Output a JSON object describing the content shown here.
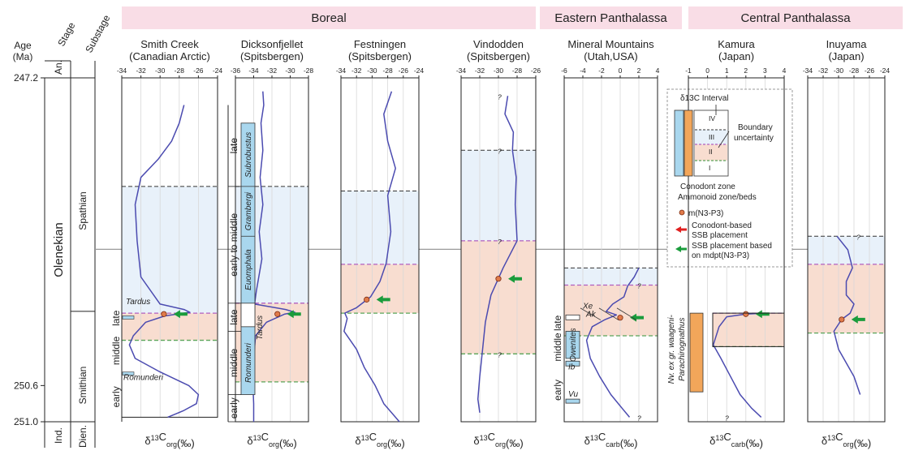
{
  "chart_data": {
    "type": "line",
    "age": {
      "label_line1": "Age",
      "label_line2": "(Ma)",
      "ticks": [
        {
          "value": 247.2,
          "label": "247.2"
        },
        {
          "value": 250.6,
          "label": "250.6"
        },
        {
          "value": 251.0,
          "label": "251.0"
        }
      ],
      "range": [
        247.2,
        251.0
      ]
    },
    "left_columns": {
      "stage_header": "Stage",
      "an_label": "An.",
      "substage_header": "Substage",
      "olenekian_label": "Olenekian",
      "spathian_label": "Spathian",
      "smithian_label": "Smithian",
      "ind_label": "Ind.",
      "dien_label": "Dien."
    },
    "regions": [
      {
        "name": "Boreal",
        "panels": [
          0,
          3
        ]
      },
      {
        "name": "Eastern Panthalassa",
        "panels": [
          4,
          4
        ]
      },
      {
        "name": "Central Panthalassa",
        "panels": [
          5,
          6
        ]
      }
    ],
    "legend": {
      "interval_title": "δ13C Interval",
      "intervals": [
        "IV",
        "III",
        "II",
        "I"
      ],
      "boundary_label_1": "Boundary",
      "boundary_label_2": "uncertainty",
      "conodont_zone_label": "Conodont zone",
      "ammonoid_zone_label": "Ammonoid zone/beds",
      "mdpt_label": "m(N3-P3)",
      "red_arrow_label_1": "Conodont-based",
      "red_arrow_label_2": "SSB placement",
      "green_arrow_label_1": "SSB placement based",
      "green_arrow_label_2": "on mdpt(N3-P3)"
    },
    "colors": {
      "curve": "#4b4bb0",
      "red_fill": "#f8ddd0",
      "blue_fill": "#e8f1fa",
      "zone_blue": "#a9d7ee",
      "zone_orange": "#f2a65a",
      "purple_dash": "#b060c0",
      "green_dash": "#5aa55a",
      "black_dash": "#333333",
      "arrow_green": "#1a9c3c",
      "arrow_red": "#e02020",
      "region_band": "#f9dde6",
      "dot": "#e07a4a"
    },
    "panels": [
      {
        "title_line1": "Smith Creek",
        "title_line2": "(Canadian Arctic)",
        "xlabel": "δ13Corg(‰)",
        "xlabel_main": "δ",
        "xlabel_sup": "13",
        "xlabel_c": "C",
        "xlabel_sub": "org",
        "xlabel_unit": "(‰)",
        "xlim": [
          -34,
          -24
        ],
        "xticks": [
          -34,
          -32,
          -30,
          -28,
          -26,
          -24
        ],
        "xtick_labels": [
          "-34",
          "-32",
          "-30",
          "-28",
          "-26",
          "-24"
        ],
        "age_top": 247.2,
        "age_bottom": 250.95,
        "boundaries": {
          "black": 248.4,
          "purple": 249.8,
          "green": 250.1
        },
        "mdpt": {
          "age": 249.81,
          "value": -29.6
        },
        "curve": [
          {
            "age": 247.5,
            "value": -27.5
          },
          {
            "age": 247.7,
            "value": -28.0
          },
          {
            "age": 247.9,
            "value": -28.8
          },
          {
            "age": 248.1,
            "value": -30.2
          },
          {
            "age": 248.3,
            "value": -32.0
          },
          {
            "age": 248.6,
            "value": -32.6
          },
          {
            "age": 249.0,
            "value": -32.4
          },
          {
            "age": 249.4,
            "value": -32.0
          },
          {
            "age": 249.7,
            "value": -30.0
          },
          {
            "age": 249.76,
            "value": -27.5
          },
          {
            "age": 249.79,
            "value": -26.9
          },
          {
            "age": 249.83,
            "value": -29.5
          },
          {
            "age": 249.9,
            "value": -31.5
          },
          {
            "age": 250.05,
            "value": -32.8
          },
          {
            "age": 250.15,
            "value": -33.2
          },
          {
            "age": 250.3,
            "value": -32.6
          },
          {
            "age": 250.45,
            "value": -30.0
          },
          {
            "age": 250.6,
            "value": -27.0
          },
          {
            "age": 250.7,
            "value": -26.0
          },
          {
            "age": 250.8,
            "value": -26.2
          },
          {
            "age": 250.88,
            "value": -27.6
          },
          {
            "age": 250.95,
            "value": -29.2
          }
        ],
        "substages": [
          {
            "label": "late",
            "from": 249.78,
            "to": 249.93
          },
          {
            "label": "middle",
            "from": 249.93,
            "to": 250.5
          },
          {
            "label": "early",
            "from": 250.5,
            "to": 250.95
          }
        ],
        "zone_markers": [
          {
            "label": "Tardus",
            "age": 249.8
          },
          {
            "label": "Romunderi",
            "age": 250.55
          }
        ]
      },
      {
        "title_line1": "Dicksonfjellet",
        "title_line2": "(Spitsbergen)",
        "xlabel": "δ13Corg(‰)",
        "xlabel_main": "δ",
        "xlabel_sup": "13",
        "xlabel_c": "C",
        "xlabel_sub": "org",
        "xlabel_unit": "(‰)",
        "xlim": [
          -36,
          -28
        ],
        "xticks": [
          -36,
          -34,
          -32,
          -30,
          -28
        ],
        "xtick_labels": [
          "-36",
          "-34",
          "-32",
          "-30",
          "-28"
        ],
        "age_top": 247.2,
        "age_bottom": 251.0,
        "boundaries": {
          "black": 248.4,
          "purple": 249.69,
          "green": 250.56
        },
        "mdpt": {
          "age": 249.81,
          "value": -31.4
        },
        "curve": [
          {
            "age": 247.35,
            "value": -33.0
          },
          {
            "age": 247.5,
            "value": -32.9
          },
          {
            "age": 247.7,
            "value": -33.2
          },
          {
            "age": 248.0,
            "value": -33.0
          },
          {
            "age": 248.3,
            "value": -33.3
          },
          {
            "age": 248.6,
            "value": -33.0
          },
          {
            "age": 248.9,
            "value": -33.4
          },
          {
            "age": 249.2,
            "value": -33.1
          },
          {
            "age": 249.55,
            "value": -33.7
          },
          {
            "age": 249.7,
            "value": -33.9
          },
          {
            "age": 249.76,
            "value": -30.5
          },
          {
            "age": 249.79,
            "value": -29.5
          },
          {
            "age": 249.81,
            "value": -30.6
          },
          {
            "age": 249.9,
            "value": -32.6
          },
          {
            "age": 250.05,
            "value": -33.8
          },
          {
            "age": 250.3,
            "value": -34.0
          },
          {
            "age": 250.56,
            "value": -34.1
          },
          {
            "age": 250.8,
            "value": -34.0
          },
          {
            "age": 251.0,
            "value": -34.0
          }
        ],
        "substages": [
          {
            "label": "late",
            "from": 247.5,
            "to": 248.4
          },
          {
            "label": "early to middle",
            "from": 248.4,
            "to": 249.69
          },
          {
            "label": "late",
            "from": 249.69,
            "to": 250.0
          },
          {
            "label": "middle",
            "from": 250.0,
            "to": 250.7
          },
          {
            "label": "early",
            "from": 250.7,
            "to": 251.0
          }
        ],
        "zone_markers": [
          {
            "label": "Subrobustus",
            "from": 247.7,
            "to": 248.4
          },
          {
            "label": "Grambergi",
            "from": 248.4,
            "to": 248.95
          },
          {
            "label": "Euomphala",
            "from": 248.95,
            "to": 249.69
          },
          {
            "label": "Tardus",
            "age": 249.95
          },
          {
            "label": "Romunderi",
            "from": 250.0,
            "to": 250.7
          }
        ]
      },
      {
        "title_line1": "Festningen",
        "title_line2": "(Spitsbergen)",
        "xlabel": "δ13Corg(‰)",
        "xlabel_main": "δ",
        "xlabel_sup": "13",
        "xlabel_c": "C",
        "xlabel_sub": "org",
        "xlabel_unit": "(‰)",
        "xlim": [
          -34,
          -24
        ],
        "xticks": [
          -34,
          -32,
          -30,
          -28,
          -26,
          -24
        ],
        "xtick_labels": [
          "-34",
          "-32",
          "-30",
          "-28",
          "-26",
          "-24"
        ],
        "age_top": 247.2,
        "age_bottom": 251.0,
        "boundaries": {
          "black": 248.45,
          "purple": 249.26,
          "green": 249.8
        },
        "mdpt": {
          "age": 249.65,
          "value": -30.7
        },
        "curve": [
          {
            "age": 247.35,
            "value": -27.5
          },
          {
            "age": 247.6,
            "value": -28.5
          },
          {
            "age": 247.9,
            "value": -28.0
          },
          {
            "age": 248.2,
            "value": -27.0
          },
          {
            "age": 248.5,
            "value": -28.0
          },
          {
            "age": 248.9,
            "value": -27.6
          },
          {
            "age": 249.25,
            "value": -28.2
          },
          {
            "age": 249.45,
            "value": -29.0
          },
          {
            "age": 249.62,
            "value": -30.2
          },
          {
            "age": 249.74,
            "value": -32.0
          },
          {
            "age": 249.8,
            "value": -33.5
          },
          {
            "age": 249.86,
            "value": -33.2
          },
          {
            "age": 250.0,
            "value": -33.6
          },
          {
            "age": 250.2,
            "value": -32.0
          },
          {
            "age": 250.4,
            "value": -31.0
          },
          {
            "age": 250.6,
            "value": -29.6
          },
          {
            "age": 250.8,
            "value": -28.5
          },
          {
            "age": 251.0,
            "value": -26.5
          }
        ]
      },
      {
        "title_line1": "Vindodden",
        "title_line2": "(Spitsbergen)",
        "xlabel": "δ13Corg(‰)",
        "xlabel_main": "δ",
        "xlabel_sup": "13",
        "xlabel_c": "C",
        "xlabel_sub": "org",
        "xlabel_unit": "(‰)",
        "xlim": [
          -34,
          -26
        ],
        "xticks": [
          -34,
          -32,
          -30,
          -28,
          -26
        ],
        "xtick_labels": [
          "-34",
          "-32",
          "-30",
          "-28",
          "-26"
        ],
        "age_top": 247.2,
        "age_bottom": 251.0,
        "boundaries": {
          "black": 248.0,
          "purple": 249.0,
          "green": 250.25
        },
        "question_marks": [
          247.4,
          248.0,
          249.0,
          250.25
        ],
        "mdpt": {
          "age": 249.42,
          "value": -30.0
        },
        "curve": [
          {
            "age": 247.4,
            "value": -29.0
          },
          {
            "age": 247.6,
            "value": -29.3
          },
          {
            "age": 247.8,
            "value": -28.4
          },
          {
            "age": 248.0,
            "value": -28.5
          },
          {
            "age": 248.3,
            "value": -28.1
          },
          {
            "age": 248.6,
            "value": -28.2
          },
          {
            "age": 249.0,
            "value": -28.0
          },
          {
            "age": 249.3,
            "value": -29.5
          },
          {
            "age": 249.6,
            "value": -30.8
          },
          {
            "age": 249.9,
            "value": -31.4
          },
          {
            "age": 250.2,
            "value": -31.7
          },
          {
            "age": 250.5,
            "value": -32.0
          },
          {
            "age": 250.75,
            "value": -32.2
          },
          {
            "age": 250.9,
            "value": -32.0
          }
        ]
      },
      {
        "title_line1": "Mineral Mountains",
        "title_line2": "(Utah,USA)",
        "xlabel": "δ13Ccarb(‰)",
        "xlabel_main": "δ",
        "xlabel_sup": "13",
        "xlabel_c": "C",
        "xlabel_sub": "carb",
        "xlabel_unit": "(‰)",
        "xlim": [
          -6,
          4
        ],
        "xticks": [
          -6,
          -4,
          -2,
          0,
          2,
          4
        ],
        "xtick_labels": [
          "-6",
          "-4",
          "-2",
          "0",
          "2",
          "4"
        ],
        "age_top": 247.2,
        "age_bottom": 251.0,
        "boundaries": {
          "black": 249.3,
          "purple": 249.49,
          "green": 250.05
        },
        "question_marks": [
          249.49,
          250.95
        ],
        "mdpt": {
          "age": 249.85,
          "value": 0.0
        },
        "curve": [
          {
            "age": 249.3,
            "value": 2.0
          },
          {
            "age": 249.4,
            "value": 1.5
          },
          {
            "age": 249.5,
            "value": 0.8
          },
          {
            "age": 249.62,
            "value": 0.4
          },
          {
            "age": 249.7,
            "value": -0.8
          },
          {
            "age": 249.78,
            "value": -1.5
          },
          {
            "age": 249.82,
            "value": -0.4
          },
          {
            "age": 249.87,
            "value": -1.6
          },
          {
            "age": 249.95,
            "value": -3.0
          },
          {
            "age": 250.1,
            "value": -3.6
          },
          {
            "age": 250.3,
            "value": -3.2
          },
          {
            "age": 250.5,
            "value": -2.2
          },
          {
            "age": 250.7,
            "value": -1.0
          },
          {
            "age": 250.85,
            "value": 0.2
          },
          {
            "age": 250.95,
            "value": 1.0
          }
        ],
        "substages": [
          {
            "label": "late",
            "from": 249.82,
            "to": 250.0
          },
          {
            "label": "middle",
            "from": 250.0,
            "to": 250.35
          },
          {
            "label": "early",
            "from": 250.35,
            "to": 250.95
          }
        ],
        "zone_markers": [
          {
            "label": "Xe",
            "age": 249.75
          },
          {
            "label": "Ak",
            "age": 249.83
          },
          {
            "label": "Owenites",
            "from": 250.0,
            "to": 250.3
          },
          {
            "label": "Ib",
            "age": 250.36
          },
          {
            "label": "Vu",
            "age": 250.75
          }
        ]
      },
      {
        "title_line1": "Kamura",
        "title_line2": "(Japan)",
        "xlabel": "δ13Ccarb(‰)",
        "xlabel_main": "δ",
        "xlabel_sup": "13",
        "xlabel_c": "C",
        "xlabel_sub": "carb",
        "xlabel_unit": "(‰)",
        "xlim": [
          -1,
          4
        ],
        "xticks": [
          -1,
          0,
          1,
          2,
          3,
          4
        ],
        "xtick_labels": [
          "-1",
          "0",
          "1",
          "2",
          "3",
          "4"
        ],
        "age_top": 247.2,
        "age_bottom": 251.0,
        "boundaries": {
          "black": 250.17,
          "purple": 249.8,
          "green": 250.17
        },
        "question_marks": [
          250.95
        ],
        "mdpt": {
          "age": 249.81,
          "value": 2.0
        },
        "curve": [
          {
            "age": 249.8,
            "value": 3.0
          },
          {
            "age": 249.81,
            "value": 2.0
          },
          {
            "age": 249.84,
            "value": 1.0
          },
          {
            "age": 249.95,
            "value": 0.6
          },
          {
            "age": 250.15,
            "value": 0.3
          },
          {
            "age": 250.3,
            "value": 0.7
          },
          {
            "age": 250.5,
            "value": 1.2
          },
          {
            "age": 250.7,
            "value": 1.7
          },
          {
            "age": 250.85,
            "value": 2.3
          },
          {
            "age": 250.95,
            "value": 2.8
          }
        ],
        "zone_markers": [
          {
            "label": "Nv. ex gr. waageni-",
            "line2": "Parachirognathus"
          }
        ]
      },
      {
        "title_line1": "Inuyama",
        "title_line2": "(Japan)",
        "xlabel": "δ13Corg(‰)",
        "xlabel_main": "δ",
        "xlabel_sup": "13",
        "xlabel_c": "C",
        "xlabel_sub": "org",
        "xlabel_unit": "(‰)",
        "xlim": [
          -34,
          -24
        ],
        "xticks": [
          -34,
          -32,
          -30,
          -28,
          -26,
          -24
        ],
        "xtick_labels": [
          "-34",
          "-32",
          "-30",
          "-28",
          "-26",
          "-24"
        ],
        "age_top": 247.2,
        "age_bottom": 251.0,
        "boundaries": {
          "black": 248.95,
          "purple": 249.26,
          "green": 250.02
        },
        "question_marks": [
          248.95
        ],
        "mdpt": {
          "age": 249.87,
          "value": -29.6
        },
        "curve": [
          {
            "age": 248.95,
            "value": -30.2
          },
          {
            "age": 249.1,
            "value": -28.8
          },
          {
            "age": 249.3,
            "value": -28.2
          },
          {
            "age": 249.45,
            "value": -29.0
          },
          {
            "age": 249.6,
            "value": -29.0
          },
          {
            "age": 249.7,
            "value": -28.0
          },
          {
            "age": 249.8,
            "value": -28.5
          },
          {
            "age": 249.87,
            "value": -29.6
          },
          {
            "age": 250.0,
            "value": -30.6
          },
          {
            "age": 250.2,
            "value": -30.0
          },
          {
            "age": 250.35,
            "value": -29.0
          },
          {
            "age": 250.5,
            "value": -28.0
          },
          {
            "age": 250.7,
            "value": -27.2
          }
        ]
      }
    ]
  }
}
